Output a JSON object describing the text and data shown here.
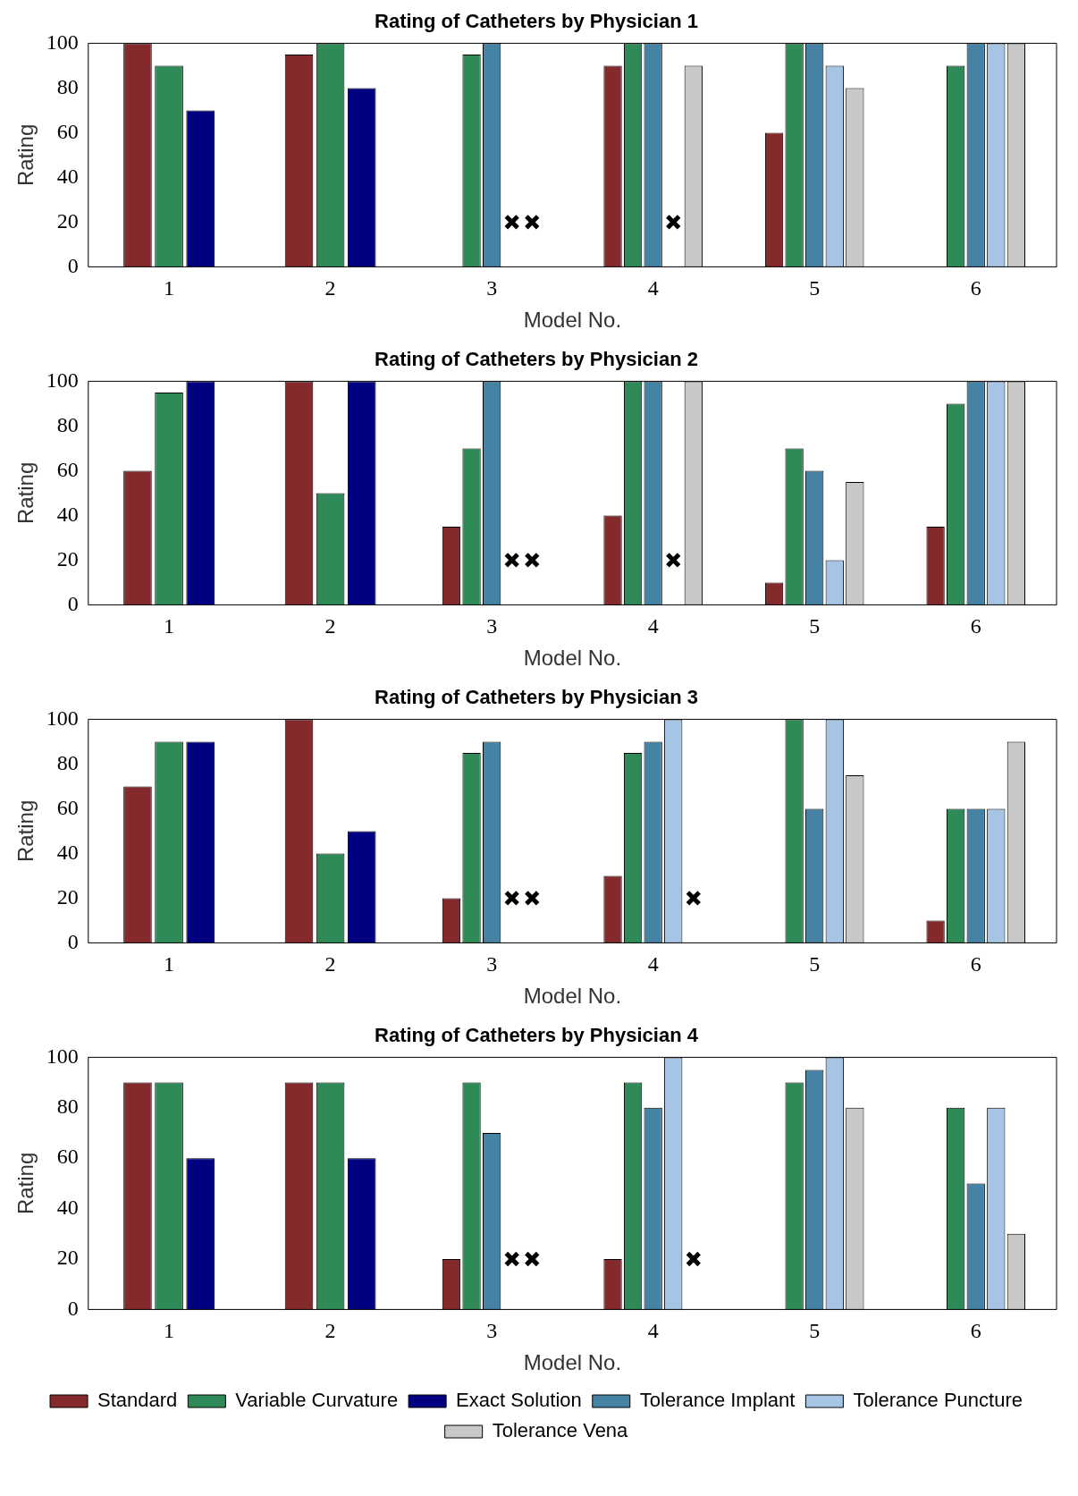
{
  "chart_data": [
    {
      "type": "bar",
      "title": "Rating of Catheters by Physician 1",
      "xlabel": "Model No.",
      "ylabel": "Rating",
      "categories": [
        "1",
        "2",
        "3",
        "4",
        "5",
        "6"
      ],
      "ylim": [
        0,
        100
      ],
      "yticks": [
        0,
        20,
        40,
        60,
        80,
        100
      ],
      "marker": "cross",
      "legend": false,
      "series": [
        {
          "color": "#852a2c",
          "values": [
            100,
            95,
            0,
            90,
            60,
            0
          ]
        },
        {
          "color": "#2e8b57",
          "values": [
            90,
            100,
            95,
            100,
            100,
            90
          ]
        },
        {
          "color": "#000080",
          "values": [
            70,
            80,
            null,
            null,
            null,
            null
          ]
        },
        {
          "color": "#4682a4",
          "values": [
            null,
            null,
            100,
            100,
            100,
            100
          ]
        },
        {
          "color": "#a6c4e4",
          "values": [
            null,
            null,
            null,
            null,
            90,
            100
          ]
        },
        {
          "color": "#c8c8c8",
          "values": [
            null,
            null,
            null,
            90,
            80,
            100
          ]
        },
        {
          "type": "scatter",
          "color": "#000000",
          "x": [
            "3",
            "3",
            "4"
          ],
          "values": [
            20,
            20,
            20
          ]
        }
      ]
    },
    {
      "type": "bar",
      "title": "Rating of Catheters by Physician 2",
      "xlabel": "Model No.",
      "ylabel": "Rating",
      "categories": [
        "1",
        "2",
        "3",
        "4",
        "5",
        "6"
      ],
      "ylim": [
        0,
        100
      ],
      "yticks": [
        0,
        20,
        40,
        60,
        80,
        100
      ],
      "marker": "cross",
      "legend": false,
      "series": [
        {
          "color": "#852a2c",
          "values": [
            60,
            100,
            35,
            40,
            10,
            35
          ]
        },
        {
          "color": "#2e8b57",
          "values": [
            95,
            50,
            70,
            100,
            70,
            90
          ]
        },
        {
          "color": "#000080",
          "values": [
            100,
            100,
            null,
            null,
            null,
            null
          ]
        },
        {
          "color": "#4682a4",
          "values": [
            null,
            null,
            100,
            100,
            60,
            100
          ]
        },
        {
          "color": "#a6c4e4",
          "values": [
            null,
            null,
            null,
            null,
            20,
            100
          ]
        },
        {
          "color": "#c8c8c8",
          "values": [
            null,
            null,
            null,
            100,
            55,
            100
          ]
        },
        {
          "type": "scatter",
          "color": "#000000",
          "x": [
            "3",
            "3",
            "4"
          ],
          "values": [
            20,
            20,
            20
          ]
        }
      ]
    },
    {
      "type": "bar",
      "title": "Rating of Catheters by Physician 3",
      "xlabel": "Model No.",
      "ylabel": "Rating",
      "categories": [
        "1",
        "2",
        "3",
        "4",
        "5",
        "6"
      ],
      "ylim": [
        0,
        100
      ],
      "yticks": [
        0,
        20,
        40,
        60,
        80,
        100
      ],
      "marker": "cross",
      "legend": false,
      "series": [
        {
          "color": "#852a2c",
          "values": [
            70,
            100,
            20,
            30,
            0,
            10
          ]
        },
        {
          "color": "#2e8b57",
          "values": [
            90,
            40,
            85,
            85,
            100,
            60
          ]
        },
        {
          "color": "#000080",
          "values": [
            90,
            50,
            null,
            null,
            null,
            null
          ]
        },
        {
          "color": "#4682a4",
          "values": [
            null,
            null,
            90,
            90,
            60,
            60
          ]
        },
        {
          "color": "#a6c4e4",
          "values": [
            null,
            null,
            null,
            100,
            100,
            60
          ]
        },
        {
          "color": "#c8c8c8",
          "values": [
            null,
            null,
            null,
            null,
            75,
            90
          ]
        },
        {
          "type": "scatter",
          "color": "#000000",
          "x": [
            "3",
            "3",
            "4"
          ],
          "values": [
            20,
            20,
            20
          ]
        }
      ]
    },
    {
      "type": "bar",
      "title": "Rating of Catheters by Physician 4",
      "xlabel": "Model No.",
      "ylabel": "Rating",
      "categories": [
        "1",
        "2",
        "3",
        "4",
        "5",
        "6"
      ],
      "ylim": [
        0,
        100
      ],
      "yticks": [
        0,
        20,
        40,
        60,
        80,
        100
      ],
      "marker": "cross",
      "legend": "bottom",
      "series": [
        {
          "name": "Standard",
          "color": "#852a2c",
          "values": [
            90,
            90,
            20,
            20,
            0,
            0
          ]
        },
        {
          "name": "Variable Curvature",
          "color": "#2e8b57",
          "values": [
            90,
            90,
            90,
            90,
            90,
            80
          ]
        },
        {
          "name": "Exact Solution",
          "color": "#000080",
          "values": [
            60,
            60,
            null,
            null,
            null,
            null
          ]
        },
        {
          "name": "Tolerance Implant",
          "color": "#4682a4",
          "values": [
            null,
            null,
            70,
            80,
            95,
            50
          ]
        },
        {
          "name": "Tolerance Puncture",
          "color": "#a6c4e4",
          "values": [
            null,
            null,
            null,
            100,
            100,
            80
          ]
        },
        {
          "name": "Tolerance Vena",
          "color": "#c8c8c8",
          "values": [
            null,
            null,
            null,
            null,
            80,
            30
          ]
        },
        {
          "type": "scatter",
          "color": "#000000",
          "x": [
            "3",
            "3",
            "4"
          ],
          "values": [
            20,
            20,
            20
          ]
        }
      ]
    }
  ]
}
